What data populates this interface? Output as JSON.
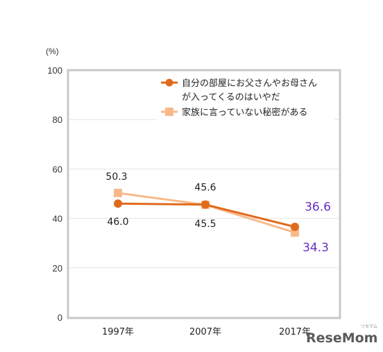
{
  "chart_data": {
    "type": "line",
    "unit_label": "(%)",
    "categories": [
      "1997年",
      "2007年",
      "2017年"
    ],
    "ylim": [
      0,
      100
    ],
    "yticks": [
      0,
      20,
      40,
      60,
      80,
      100
    ],
    "grid": true,
    "legend_position": "top-right",
    "series": [
      {
        "name": "自分の部屋にお父さんやお母さんが入ってくるのはいやだ",
        "name_lines": [
          "自分の部屋にお父さんやお母さん",
          "が入ってくるのはいやだ"
        ],
        "marker": "circle",
        "color": "#e06a1b",
        "values": [
          46.0,
          45.6,
          36.6
        ],
        "labels": [
          "46.0",
          "45.6",
          "36.6"
        ]
      },
      {
        "name": "家族に言っていない秘密がある",
        "name_lines": [
          "家族に言っていない秘密がある"
        ],
        "marker": "square",
        "color": "#f8b98a",
        "values": [
          50.3,
          45.5,
          34.3
        ],
        "labels": [
          "50.3",
          "45.5",
          "34.3"
        ]
      }
    ]
  },
  "watermark": {
    "brand": "ReseMom",
    "tagline": "リセマム"
  }
}
